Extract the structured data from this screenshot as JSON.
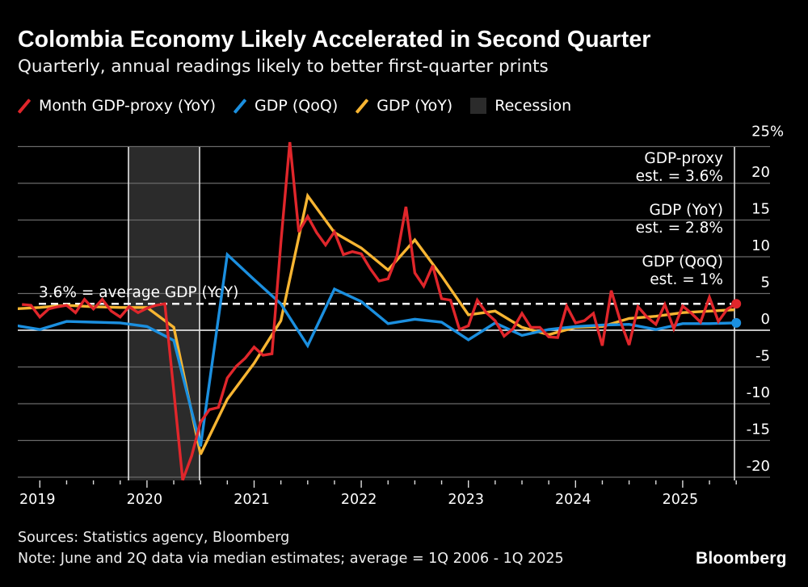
{
  "header": {
    "title": "Colombia Economy Likely Accelerated in Second Quarter",
    "subtitle": "Quarterly, annual readings likely to better first-quarter prints"
  },
  "legend": [
    {
      "label": "Month GDP-proxy (YoY)",
      "color": "#e0262b",
      "icon": "slash-line"
    },
    {
      "label": "GDP (QoQ)",
      "color": "#1b8fdf",
      "icon": "slash-line"
    },
    {
      "label": "GDP (YoY)",
      "color": "#f7b532",
      "icon": "slash-line"
    },
    {
      "label": "Recession",
      "color": "#2b2b2b",
      "icon": "square"
    }
  ],
  "footer": {
    "sources": "Sources: Statistics agency, Bloomberg",
    "note": "Note: June and 2Q data via median estimates; average = 1Q 2006 - 1Q 2025",
    "logo": "Bloomberg"
  },
  "chart_data": {
    "type": "line",
    "title": "Colombia Economy Likely Accelerated in Second Quarter",
    "subtitle": "Quarterly, annual readings likely to better first-quarter prints",
    "xlabel": "",
    "ylabel": "",
    "y_unit": "%",
    "ylim": [
      -22,
      25
    ],
    "yticks": [
      25,
      20,
      15,
      10,
      5,
      0,
      -5,
      -10,
      -15,
      -20
    ],
    "xticks": [
      "2019",
      "2020",
      "2021",
      "2022",
      "2023",
      "2024",
      "2025"
    ],
    "y_axis_position": "right",
    "grid": true,
    "legend_position": "top-left",
    "recession": {
      "label": "Recession",
      "from": "2019-11",
      "to": "2020-06"
    },
    "reference_line": {
      "value": 3.6,
      "label": "3.6% = average GDP (YoY)",
      "style": "dashed"
    },
    "annotations": [
      {
        "line1": "GDP-proxy",
        "line2": "est. = 3.6%"
      },
      {
        "line1": "GDP (YoY)",
        "line2": "est. = 2.8%"
      },
      {
        "line1": "GDP (QoQ)",
        "line2": "est. = 1%"
      }
    ],
    "series": [
      {
        "name": "Month GDP-proxy (YoY)",
        "color": "#e0262b",
        "frequency": "monthly",
        "points": [
          [
            "2018-10",
            3.5
          ],
          [
            "2018-11",
            3.4
          ],
          [
            "2018-12",
            1.8
          ],
          [
            "2019-01",
            2.9
          ],
          [
            "2019-02",
            3.2
          ],
          [
            "2019-03",
            3.4
          ],
          [
            "2019-04",
            2.4
          ],
          [
            "2019-05",
            4.2
          ],
          [
            "2019-06",
            2.9
          ],
          [
            "2019-07",
            4.2
          ],
          [
            "2019-08",
            2.6
          ],
          [
            "2019-09",
            1.8
          ],
          [
            "2019-10",
            3.2
          ],
          [
            "2019-11",
            2.4
          ],
          [
            "2019-12",
            3.0
          ],
          [
            "2020-01",
            3.4
          ],
          [
            "2020-02",
            3.6
          ],
          [
            "2020-03",
            -8.3
          ],
          [
            "2020-04",
            -20.4
          ],
          [
            "2020-05",
            -17.1
          ],
          [
            "2020-06",
            -12.5
          ],
          [
            "2020-07",
            -10.8
          ],
          [
            "2020-08",
            -10.5
          ],
          [
            "2020-09",
            -6.5
          ],
          [
            "2020-10",
            -4.9
          ],
          [
            "2020-11",
            -3.8
          ],
          [
            "2020-12",
            -2.3
          ],
          [
            "2021-01",
            -3.4
          ],
          [
            "2021-02",
            -3.2
          ],
          [
            "2021-03",
            11.9
          ],
          [
            "2021-04",
            25.6
          ],
          [
            "2021-05",
            13.4
          ],
          [
            "2021-06",
            15.5
          ],
          [
            "2021-07",
            13.3
          ],
          [
            "2021-08",
            11.6
          ],
          [
            "2021-09",
            13.4
          ],
          [
            "2021-10",
            10.3
          ],
          [
            "2021-11",
            10.7
          ],
          [
            "2021-12",
            10.4
          ],
          [
            "2022-01",
            8.4
          ],
          [
            "2022-02",
            6.7
          ],
          [
            "2022-03",
            7.0
          ],
          [
            "2022-04",
            10.1
          ],
          [
            "2022-05",
            16.8
          ],
          [
            "2022-06",
            7.8
          ],
          [
            "2022-07",
            6.0
          ],
          [
            "2022-08",
            8.8
          ],
          [
            "2022-09",
            4.3
          ],
          [
            "2022-10",
            4.1
          ],
          [
            "2022-11",
            0.1
          ],
          [
            "2022-12",
            0.6
          ],
          [
            "2023-01",
            4.1
          ],
          [
            "2023-02",
            2.4
          ],
          [
            "2023-03",
            1.3
          ],
          [
            "2023-04",
            -0.8
          ],
          [
            "2023-05",
            0.2
          ],
          [
            "2023-06",
            2.3
          ],
          [
            "2023-07",
            0.4
          ],
          [
            "2023-08",
            0.4
          ],
          [
            "2023-09",
            -0.9
          ],
          [
            "2023-10",
            -1.0
          ],
          [
            "2023-11",
            3.3
          ],
          [
            "2023-12",
            1.0
          ],
          [
            "2024-01",
            1.3
          ],
          [
            "2024-02",
            2.3
          ],
          [
            "2024-03",
            -2.1
          ],
          [
            "2024-04",
            5.4
          ],
          [
            "2024-05",
            1.3
          ],
          [
            "2024-06",
            -2.0
          ],
          [
            "2024-07",
            3.2
          ],
          [
            "2024-08",
            1.8
          ],
          [
            "2024-09",
            0.8
          ],
          [
            "2024-10",
            3.5
          ],
          [
            "2024-11",
            0.2
          ],
          [
            "2024-12",
            3.3
          ],
          [
            "2025-01",
            2.3
          ],
          [
            "2025-02",
            1.1
          ],
          [
            "2025-03",
            4.5
          ],
          [
            "2025-04",
            1.2
          ],
          [
            "2025-05",
            2.9
          ],
          [
            "2025-06",
            3.6
          ]
        ]
      },
      {
        "name": "GDP (QoQ)",
        "color": "#1b8fdf",
        "frequency": "quarterly",
        "points": [
          [
            "2018Q3",
            0.7
          ],
          [
            "2018Q4",
            0.1
          ],
          [
            "2019Q1",
            1.2
          ],
          [
            "2019Q2",
            1.1
          ],
          [
            "2019Q3",
            1.0
          ],
          [
            "2019Q4",
            0.5
          ],
          [
            "2020Q1",
            -1.4
          ],
          [
            "2020Q2",
            -15.8
          ],
          [
            "2020Q3",
            10.3
          ],
          [
            "2020Q4",
            6.9
          ],
          [
            "2021Q1",
            3.6
          ],
          [
            "2021Q2",
            -2.1
          ],
          [
            "2021Q3",
            5.6
          ],
          [
            "2021Q4",
            3.9
          ],
          [
            "2022Q1",
            0.9
          ],
          [
            "2022Q2",
            1.5
          ],
          [
            "2022Q3",
            1.1
          ],
          [
            "2022Q4",
            -1.3
          ],
          [
            "2023Q1",
            1.0
          ],
          [
            "2023Q2",
            -0.7
          ],
          [
            "2023Q3",
            0.1
          ],
          [
            "2023Q4",
            0.5
          ],
          [
            "2024Q1",
            0.7
          ],
          [
            "2024Q2",
            0.8
          ],
          [
            "2024Q3",
            0.1
          ],
          [
            "2024Q4",
            0.9
          ],
          [
            "2025Q1",
            0.9
          ],
          [
            "2025Q2",
            1.0
          ]
        ]
      },
      {
        "name": "GDP (YoY)",
        "color": "#f7b532",
        "frequency": "quarterly",
        "points": [
          [
            "2018Q3",
            2.9
          ],
          [
            "2018Q4",
            3.1
          ],
          [
            "2019Q1",
            3.4
          ],
          [
            "2019Q2",
            3.2
          ],
          [
            "2019Q3",
            3.1
          ],
          [
            "2019Q4",
            3.1
          ],
          [
            "2020Q1",
            0.4
          ],
          [
            "2020Q2",
            -16.9
          ],
          [
            "2020Q3",
            -9.4
          ],
          [
            "2020Q4",
            -4.5
          ],
          [
            "2021Q1",
            1.3
          ],
          [
            "2021Q2",
            18.3
          ],
          [
            "2021Q3",
            13.3
          ],
          [
            "2021Q4",
            11.2
          ],
          [
            "2022Q1",
            8.2
          ],
          [
            "2022Q2",
            12.3
          ],
          [
            "2022Q3",
            7.4
          ],
          [
            "2022Q4",
            2.1
          ],
          [
            "2023Q1",
            2.6
          ],
          [
            "2023Q2",
            0.4
          ],
          [
            "2023Q3",
            -0.6
          ],
          [
            "2023Q4",
            0.4
          ],
          [
            "2024Q1",
            0.5
          ],
          [
            "2024Q2",
            1.6
          ],
          [
            "2024Q3",
            1.9
          ],
          [
            "2024Q4",
            2.4
          ],
          [
            "2025Q1",
            2.6
          ],
          [
            "2025Q2",
            2.8
          ]
        ]
      }
    ]
  }
}
